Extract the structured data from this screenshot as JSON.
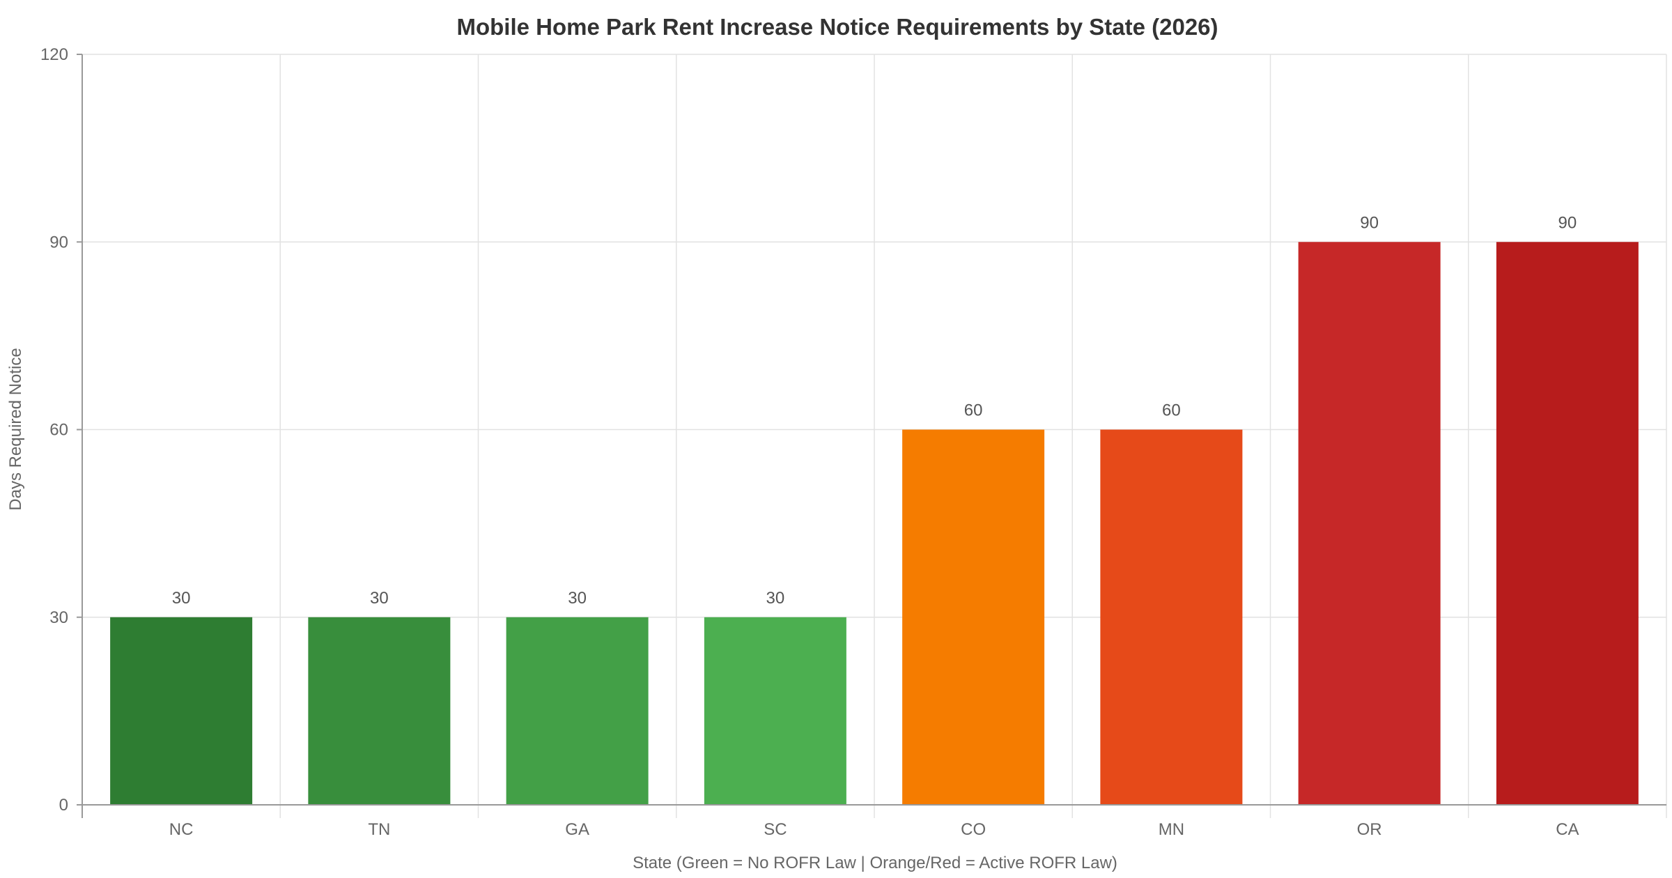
{
  "chart_data": {
    "type": "bar",
    "title": "Mobile Home Park Rent Increase Notice Requirements by State (2026)",
    "xlabel": "State (Green = No ROFR Law | Orange/Red = Active ROFR Law)",
    "ylabel": "Days Required Notice",
    "categories": [
      "NC",
      "TN",
      "GA",
      "SC",
      "CO",
      "MN",
      "OR",
      "CA"
    ],
    "values": [
      30,
      30,
      30,
      30,
      60,
      60,
      90,
      90
    ],
    "colors": [
      "#2e7d32",
      "#388e3c",
      "#43a047",
      "#4caf50",
      "#f57c00",
      "#e64a19",
      "#c62828",
      "#b71c1c"
    ],
    "ylim": [
      0,
      120
    ],
    "yticks": [
      0,
      30,
      60,
      90,
      120
    ],
    "grid": true,
    "legend": "none"
  }
}
